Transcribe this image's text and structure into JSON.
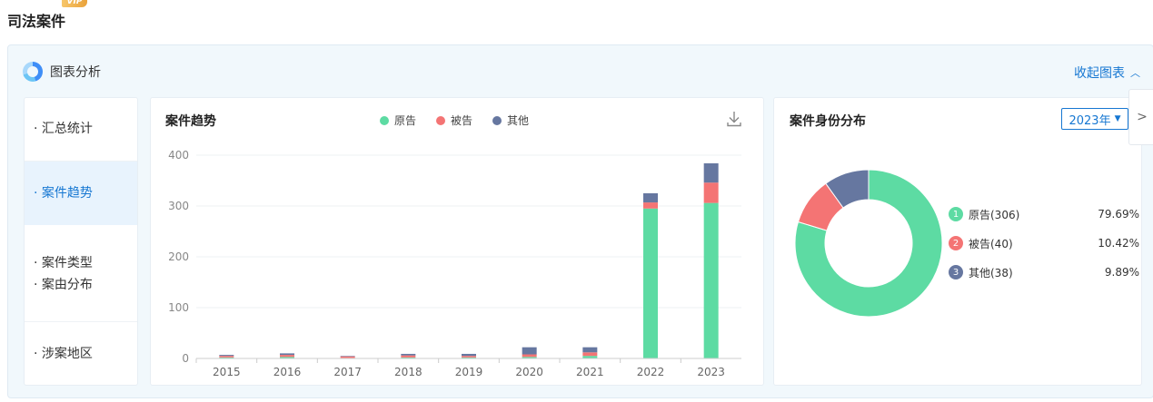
{
  "page": {
    "title": "司法案件",
    "badge": "VIP"
  },
  "panel": {
    "title": "图表分析",
    "collapse_label": "收起图表"
  },
  "nav": {
    "items": [
      {
        "lines": [
          "· 汇总统计"
        ]
      },
      {
        "lines": [
          "· 案件趋势"
        ]
      },
      {
        "lines": [
          "· 案件类型",
          "· 案由分布"
        ]
      },
      {
        "lines": [
          "· 涉案地区"
        ]
      }
    ]
  },
  "trend": {
    "title": "案件趋势",
    "legend": [
      "原告",
      "被告",
      "其他"
    ]
  },
  "identity": {
    "title": "案件身份分布",
    "year": "2023年",
    "rows": [
      {
        "num": "1",
        "label": "原告(306)",
        "pct": "79.69%"
      },
      {
        "num": "2",
        "label": "被告(40)",
        "pct": "10.42%"
      },
      {
        "num": "3",
        "label": "其他(38)",
        "pct": "9.89%"
      }
    ]
  },
  "colors": {
    "plaintiff": "#5ddba3",
    "defendant": "#f47474",
    "other": "#6677a0",
    "accent": "#1677d2"
  },
  "chart_data": [
    {
      "type": "bar",
      "stacked": true,
      "categories": [
        "2015",
        "2016",
        "2017",
        "2018",
        "2019",
        "2020",
        "2021",
        "2022",
        "2023"
      ],
      "series": [
        {
          "name": "原告",
          "values": [
            2,
            3,
            1,
            2,
            2,
            3,
            5,
            295,
            306
          ]
        },
        {
          "name": "被告",
          "values": [
            3,
            4,
            3,
            4,
            3,
            5,
            7,
            12,
            40
          ]
        },
        {
          "name": "其他",
          "values": [
            2,
            3,
            1,
            3,
            4,
            14,
            10,
            18,
            38
          ]
        }
      ],
      "yticks": [
        "0",
        "100",
        "200",
        "300",
        "400"
      ],
      "ylim": [
        0,
        400
      ],
      "legend": "top"
    },
    {
      "type": "pie",
      "categories": [
        "原告",
        "被告",
        "其他"
      ],
      "values": [
        306,
        40,
        38
      ],
      "donut": true
    }
  ]
}
